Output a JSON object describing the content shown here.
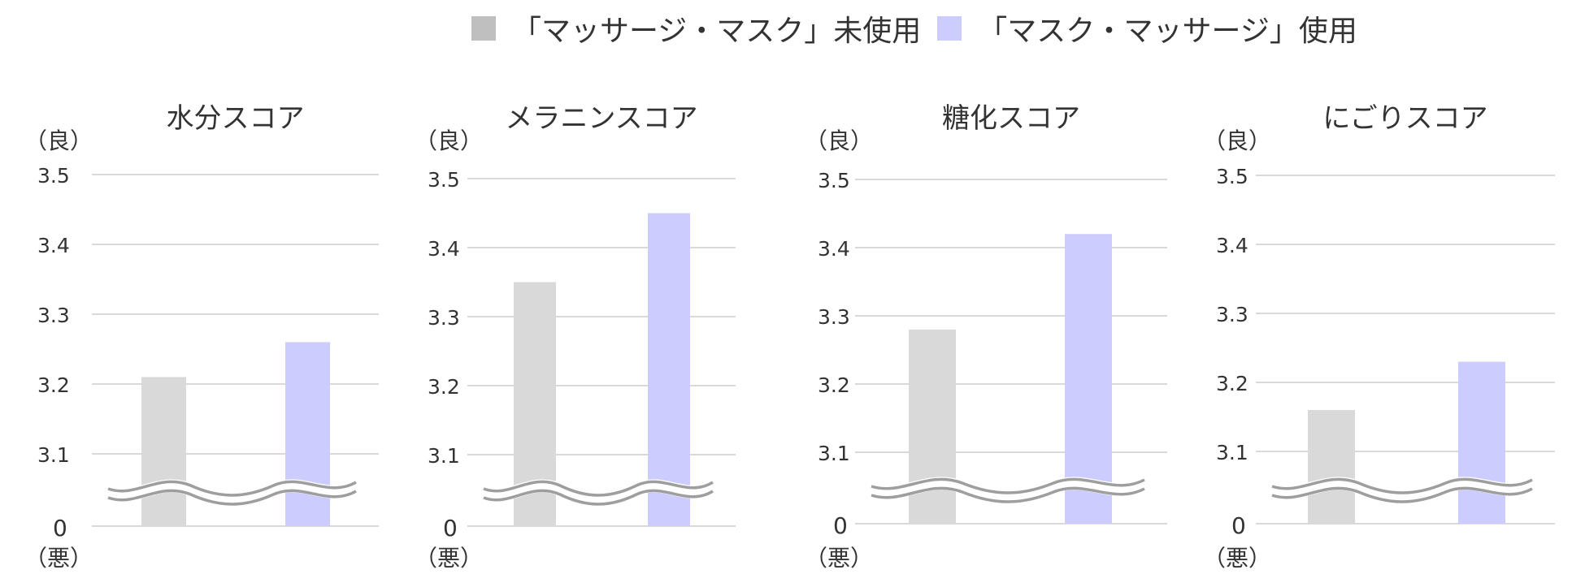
{
  "legend": {
    "items": [
      {
        "label": "「マッサージ・マスク」未使用",
        "color": "#bfbfbf"
      },
      {
        "label": "「マスク・マッサージ」使用",
        "color": "#ccccff"
      }
    ]
  },
  "axis_labels": {
    "good": "（良）",
    "bad": "（悪）"
  },
  "colors": {
    "unused_bar": "#d9d9d9",
    "used_bar": "#ccccff",
    "grid": "#d9d9d9",
    "break_line": "#9e9e9e"
  },
  "chart_data": [
    {
      "type": "bar",
      "title": "水分スコア",
      "categories": [
        "「マッサージ・マスク」未使用",
        "「マスク・マッサージ」使用"
      ],
      "values": [
        3.21,
        3.26
      ],
      "yticks": [
        "0",
        "3.1",
        "3.2",
        "3.3",
        "3.4",
        "3.5"
      ],
      "ylim": [
        3.0,
        3.5
      ],
      "axis_break": true,
      "grid": true,
      "legend_position": "top"
    },
    {
      "type": "bar",
      "title": "メラニンスコア",
      "categories": [
        "「マッサージ・マスク」未使用",
        "「マスク・マッサージ」使用"
      ],
      "values": [
        3.35,
        3.45
      ],
      "yticks": [
        "0",
        "3.1",
        "3.2",
        "3.3",
        "3.4",
        "3.5"
      ],
      "ylim": [
        3.0,
        3.5
      ],
      "axis_break": true,
      "grid": true,
      "legend_position": "top"
    },
    {
      "type": "bar",
      "title": "糖化スコア",
      "categories": [
        "「マッサージ・マスク」未使用",
        "「マスク・マッサージ」使用"
      ],
      "values": [
        3.28,
        3.42
      ],
      "yticks": [
        "0",
        "3.1",
        "3.2",
        "3.3",
        "3.4",
        "3.5"
      ],
      "ylim": [
        3.0,
        3.5
      ],
      "axis_break": true,
      "grid": true,
      "legend_position": "top"
    },
    {
      "type": "bar",
      "title": "にごりスコア",
      "categories": [
        "「マッサージ・マスク」未使用",
        "「マスク・マッサージ」使用"
      ],
      "values": [
        3.16,
        3.23
      ],
      "yticks": [
        "0",
        "3.1",
        "3.2",
        "3.3",
        "3.4",
        "3.5"
      ],
      "ylim": [
        3.0,
        3.5
      ],
      "axis_break": true,
      "grid": true,
      "legend_position": "top"
    }
  ]
}
